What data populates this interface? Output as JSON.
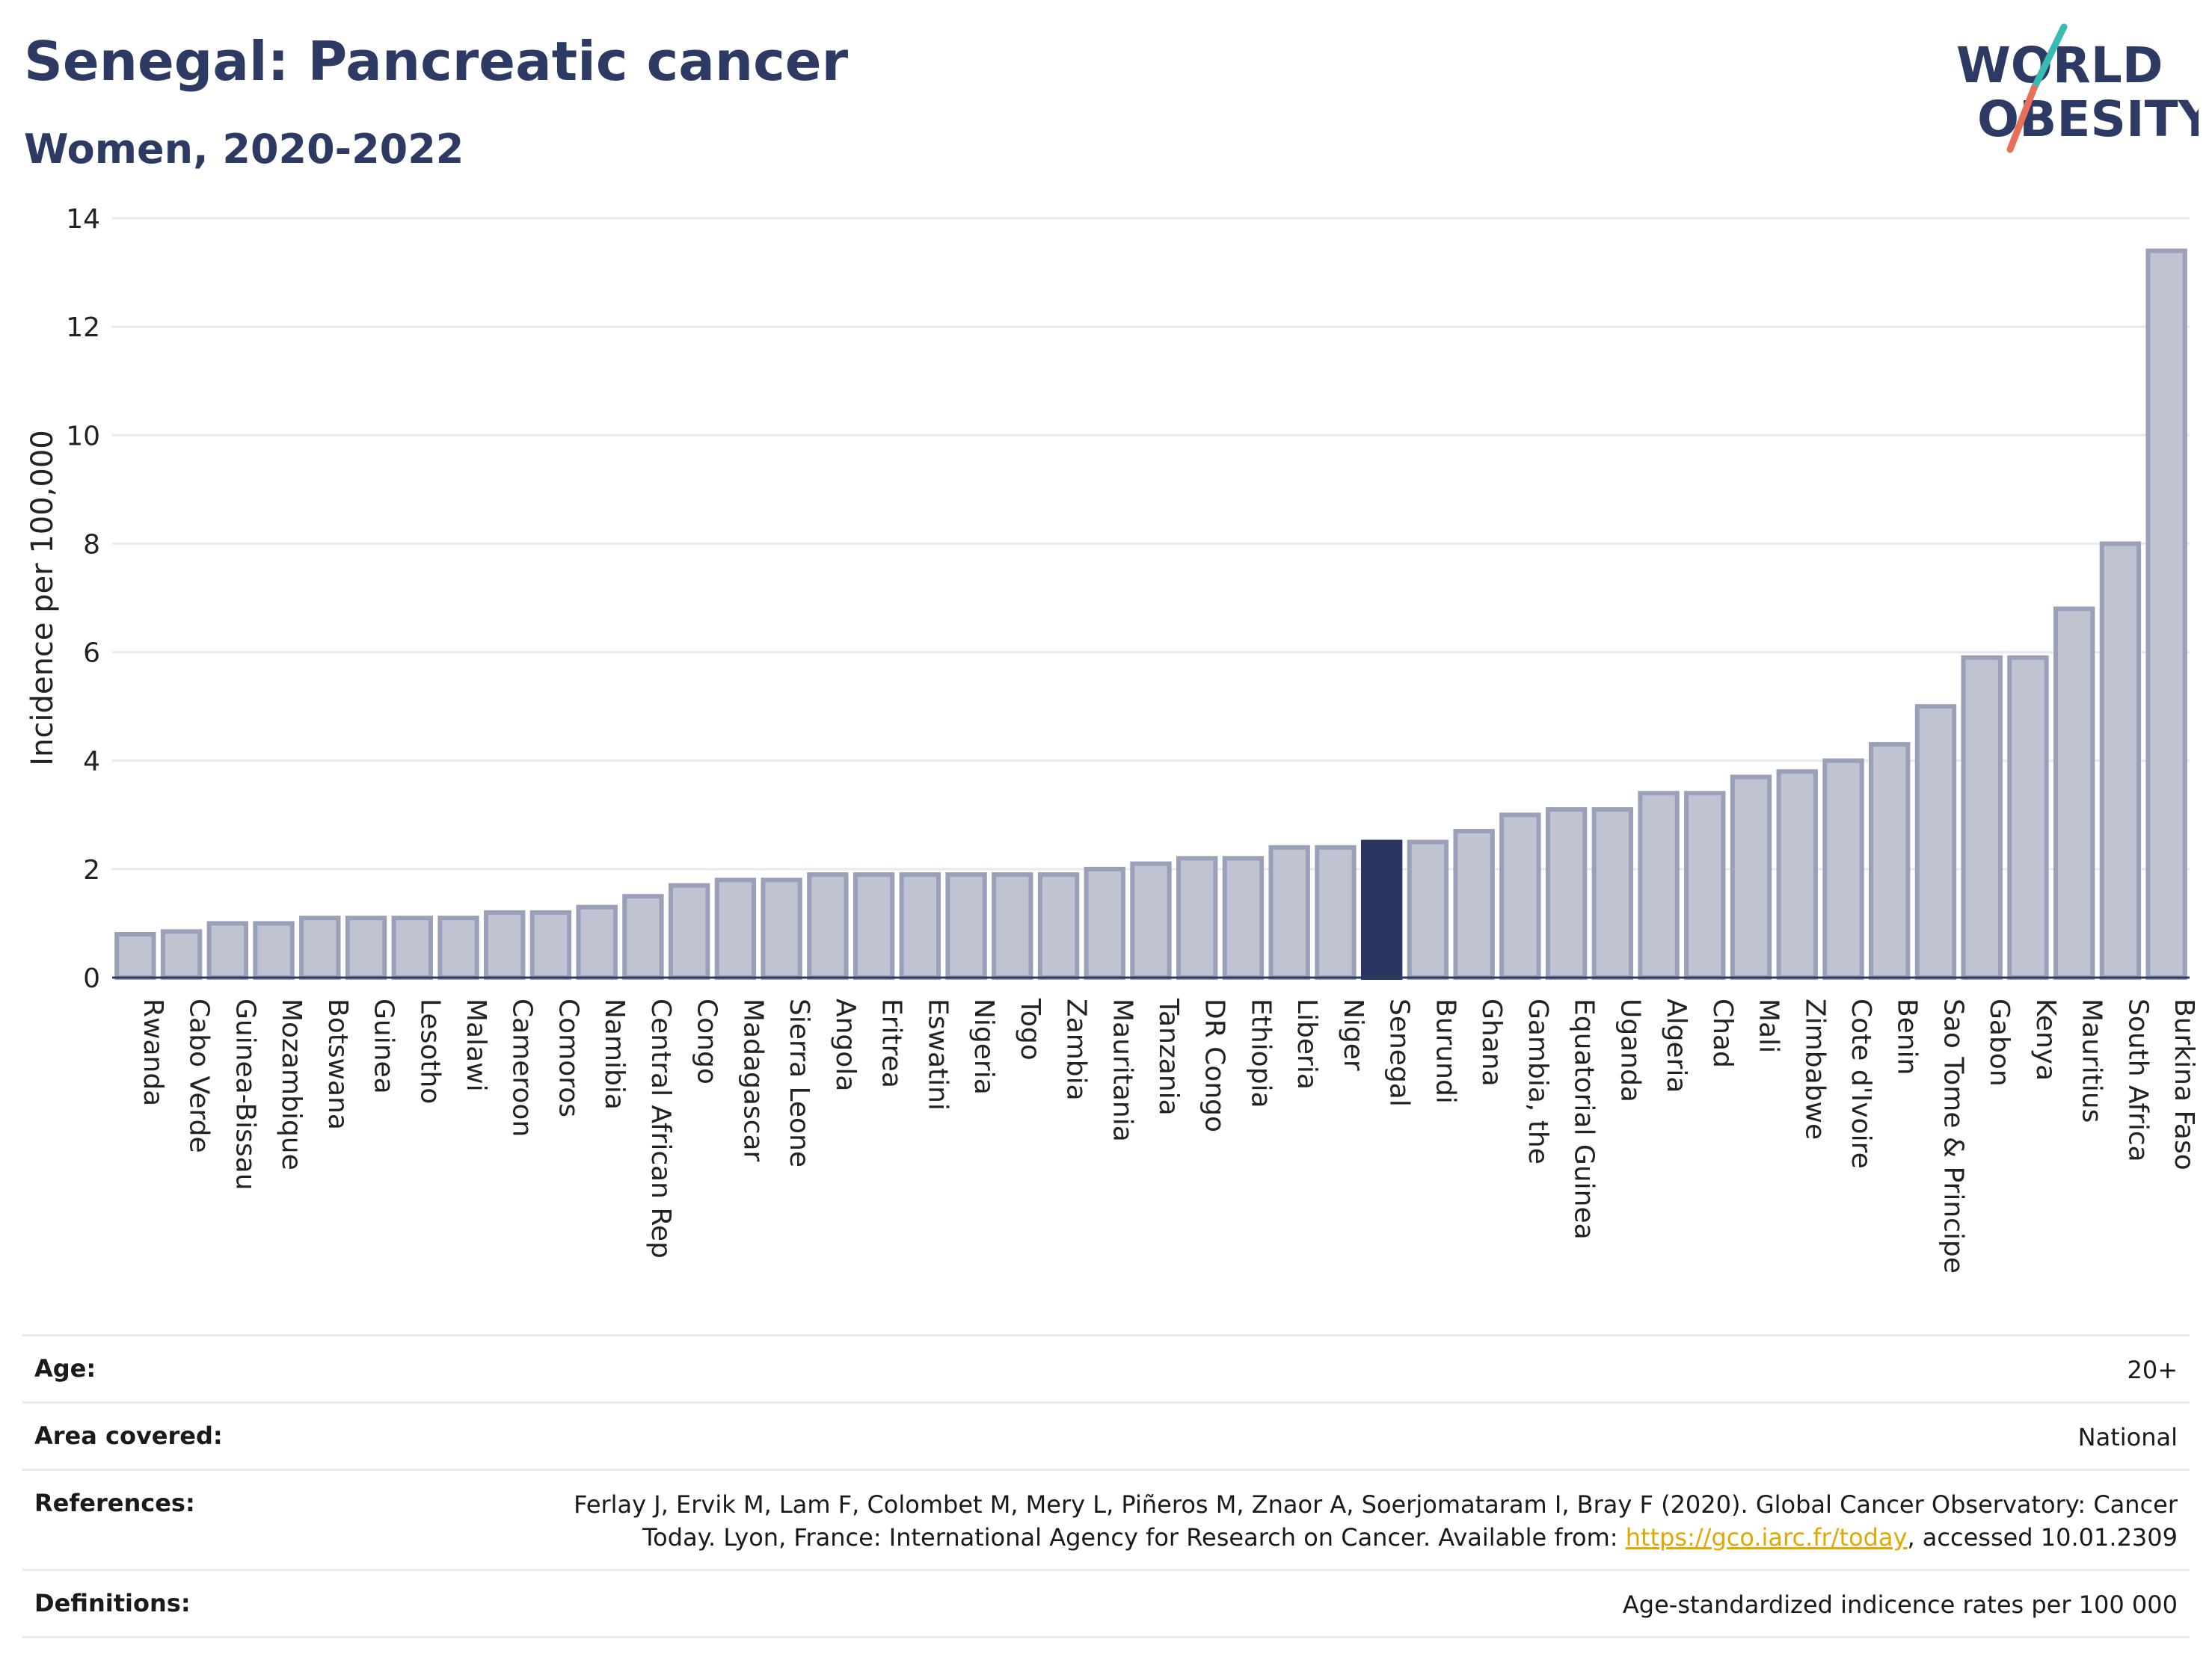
{
  "header": {
    "title": "Senegal: Pancreatic cancer",
    "subtitle": "Women, 2020-2022",
    "logo_line1": "WORLD",
    "logo_line2": "OBESITY"
  },
  "colors": {
    "title": "#2d3a63",
    "bar_default": "#bfc3d2",
    "bar_default_stroke": "#9aa0b8",
    "bar_highlight": "#2a3561",
    "link": "#e0a800",
    "logo_slash_teal": "#3bb9b3",
    "logo_slash_coral": "#e8705a"
  },
  "chart_data": {
    "type": "bar",
    "ylabel": "Incidence per 100,000",
    "xlabel": "",
    "ylim": [
      0,
      14
    ],
    "yticks": [
      0,
      2,
      4,
      6,
      8,
      10,
      12,
      14
    ],
    "grid": true,
    "highlight": "Senegal",
    "categories": [
      "Rwanda",
      "Cabo Verde",
      "Guinea-Bissau",
      "Mozambique",
      "Botswana",
      "Guinea",
      "Lesotho",
      "Malawi",
      "Cameroon",
      "Comoros",
      "Namibia",
      "Central African Rep",
      "Congo",
      "Madagascar",
      "Sierra Leone",
      "Angola",
      "Eritrea",
      "Eswatini",
      "Nigeria",
      "Togo",
      "Zambia",
      "Mauritania",
      "Tanzania",
      "DR Congo",
      "Ethiopia",
      "Liberia",
      "Niger",
      "Senegal",
      "Burundi",
      "Ghana",
      "Gambia, the",
      "Equatorial Guinea",
      "Uganda",
      "Algeria",
      "Chad",
      "Mali",
      "Zimbabwe",
      "Cote d'Ivoire",
      "Benin",
      "Sao Tome & Principe",
      "Gabon",
      "Kenya",
      "Mauritius",
      "South Africa",
      "Burkina Faso"
    ],
    "values": [
      0.8,
      0.85,
      1.0,
      1.0,
      1.1,
      1.1,
      1.1,
      1.1,
      1.2,
      1.2,
      1.3,
      1.5,
      1.7,
      1.8,
      1.8,
      1.9,
      1.9,
      1.9,
      1.9,
      1.9,
      1.9,
      2.0,
      2.1,
      2.2,
      2.2,
      2.4,
      2.4,
      2.5,
      2.5,
      2.7,
      3.0,
      3.1,
      3.1,
      3.4,
      3.4,
      3.7,
      3.8,
      4.0,
      4.3,
      5.0,
      5.9,
      5.9,
      6.8,
      8.0,
      13.4
    ]
  },
  "info": {
    "age_label": "Age:",
    "age_value": "20+",
    "area_label": "Area covered:",
    "area_value": "National",
    "references_label": "References:",
    "references_text_1": "Ferlay J, Ervik M, Lam F, Colombet M, Mery L, Piñeros M, Znaor A, Soerjomataram I, Bray F (2020). Global Cancer Observatory: Cancer Today. Lyon, France: International Agency for Research on Cancer. Available from: ",
    "references_link": "https://gco.iarc.fr/today",
    "references_text_2": ", accessed 10.01.2309",
    "definitions_label": "Definitions:",
    "definitions_value": "Age-standardized indicence rates per 100 000"
  }
}
